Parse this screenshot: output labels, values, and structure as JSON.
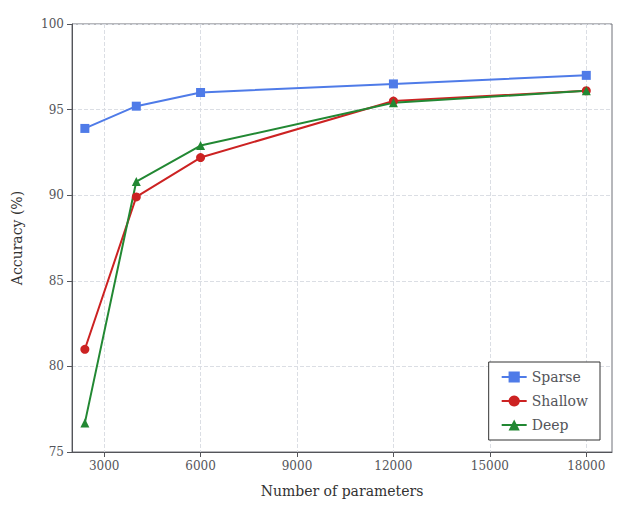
{
  "chart_data": {
    "type": "line",
    "xlabel": "Number of parameters",
    "ylabel": "Accuracy (%)",
    "x": [
      2400,
      4000,
      6000,
      12000,
      18000
    ],
    "series": [
      {
        "name": "Sparse",
        "color": "#4f7be8",
        "marker": "square",
        "values": [
          93.9,
          95.2,
          96.0,
          96.5,
          97.0
        ]
      },
      {
        "name": "Shallow",
        "color": "#cc2222",
        "marker": "circle",
        "values": [
          81.0,
          89.9,
          92.2,
          95.5,
          96.1
        ]
      },
      {
        "name": "Deep",
        "color": "#228833",
        "marker": "triangle",
        "values": [
          76.7,
          90.8,
          92.9,
          95.4,
          96.1
        ]
      }
    ],
    "xlim": [
      2000,
      18800
    ],
    "ylim": [
      75,
      100
    ],
    "xticks": [
      3000,
      6000,
      9000,
      12000,
      15000,
      18000
    ],
    "yticks": [
      75,
      80,
      85,
      90,
      95,
      100
    ],
    "grid": true,
    "legend": "lower right"
  }
}
